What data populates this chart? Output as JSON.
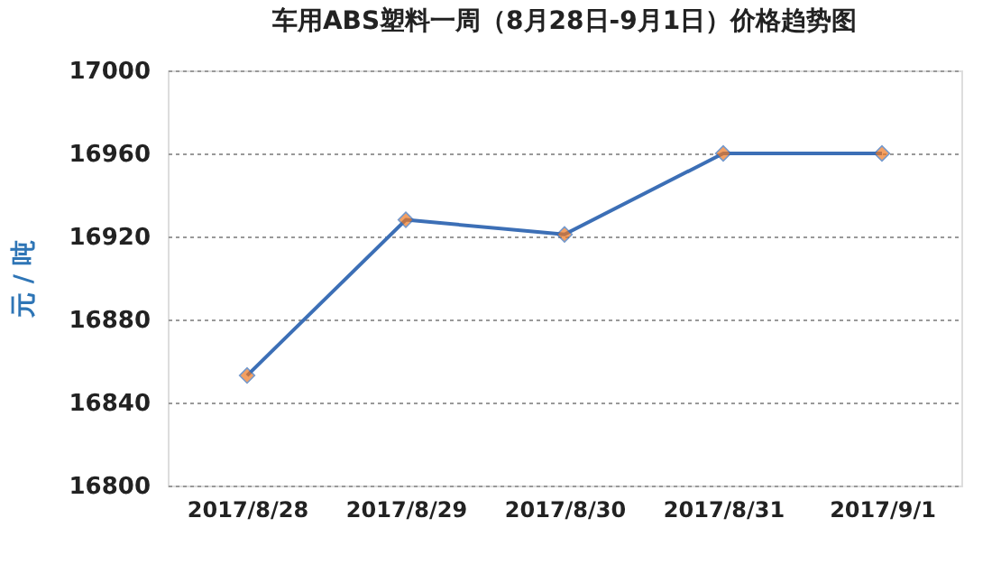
{
  "chart_data": {
    "type": "line",
    "title": "车用ABS塑料一周（8月28日-9月1日）价格趋势图",
    "ylabel": "元 / 吨",
    "categories": [
      "2017/8/28",
      "2017/8/29",
      "2017/8/30",
      "2017/8/31",
      "2017/9/1"
    ],
    "series": [
      {
        "color": "#3c6fb6",
        "values": [
          16853,
          16928,
          16921,
          16960,
          16960
        ]
      }
    ],
    "ylim": [
      16800,
      17000
    ],
    "yticks": [
      16800,
      16840,
      16880,
      16920,
      16960,
      17000
    ],
    "grid": "y",
    "marker": "diamond",
    "line_style": "solid"
  }
}
